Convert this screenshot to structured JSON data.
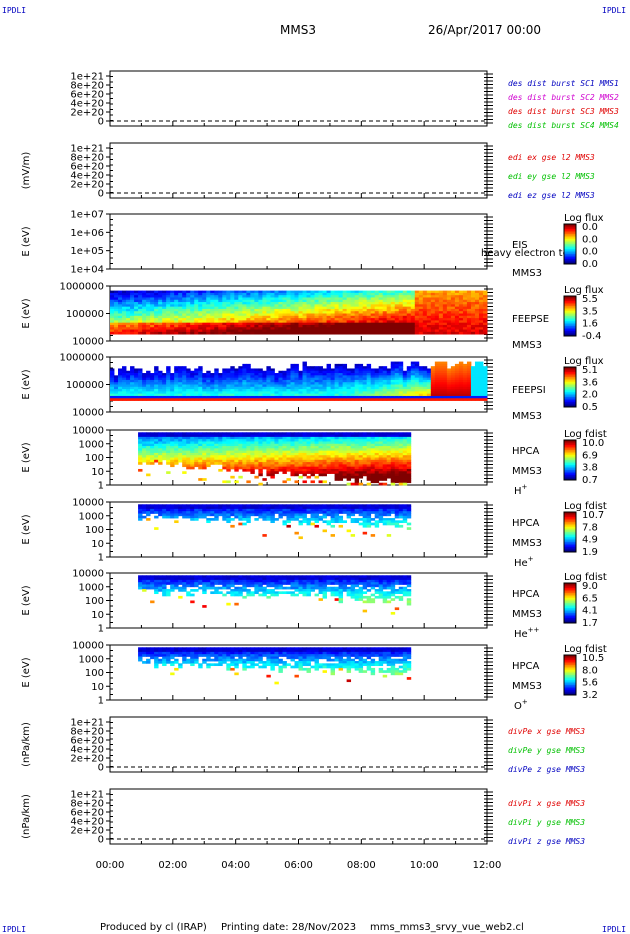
{
  "corner_marks": {
    "top_left": "IPDLI",
    "top_right": "IPDLI",
    "bottom_left": "IPDLI",
    "bottom_right": "IPDLI"
  },
  "header": {
    "spacecraft": "MMS3",
    "date": "26/Apr/2017 00:00"
  },
  "footer": {
    "produced": "Produced by cl (IRAP)",
    "printing": "Printing date: 28/Nov/2023",
    "file": "mms_mms3_srvy_vue_web2.cl"
  },
  "colors": {
    "red": "#e00000",
    "magenta": "#d000d0",
    "green": "#00c000",
    "blue": "#0000c0"
  },
  "chart_data": {
    "type": "heatmap",
    "x_ticks": [
      "00:00",
      "02:00",
      "04:00",
      "06:00",
      "08:00",
      "10:00",
      "12:00"
    ],
    "x_range_hours": [
      0,
      12
    ],
    "panels": [
      {
        "id": "des-dist",
        "type": "line",
        "ylabel": "",
        "yticks": [
          "1e+21",
          "8e+20",
          "6e+20",
          "4e+20",
          "2e+20",
          "0"
        ],
        "legend": [
          {
            "text": "des dist burst SC1 MMS1",
            "color": "#0000c0"
          },
          {
            "text": "des dist burst SC2 MMS2",
            "color": "#d000d0"
          },
          {
            "text": "des dist burst SC3 MMS3",
            "color": "#e00000"
          },
          {
            "text": "des dist burst SC4 MMS4",
            "color": "#00c000"
          }
        ]
      },
      {
        "id": "edi",
        "type": "line",
        "ylabel": "(mV/m)",
        "yticks": [
          "1e+21",
          "8e+20",
          "6e+20",
          "4e+20",
          "2e+20",
          "0"
        ],
        "legend": [
          {
            "text": "edi ex gse l2 MMS3",
            "color": "#e00000"
          },
          {
            "text": "edi ey gse l2 MMS3",
            "color": "#00c000"
          },
          {
            "text": "edi ez gse l2 MMS3",
            "color": "#0000c0"
          }
        ]
      },
      {
        "id": "eis",
        "type": "heatmap",
        "ylabel": "E (eV)",
        "yticks": [
          "1e+07",
          "1e+06",
          "1e+05",
          "1e+04"
        ],
        "instrument": "EIS",
        "subtitle": "heavy electron tof",
        "sc": "MMS3",
        "cb_title": "Log flux",
        "cb_ticks": [
          "0.0",
          "0.0",
          "0.0",
          "0.0"
        ]
      },
      {
        "id": "feeps-e",
        "type": "heatmap",
        "ylabel": "E (eV)",
        "yticks": [
          "1000000",
          "100000",
          "10000"
        ],
        "instrument": "FEEPSE",
        "sc": "MMS3",
        "cb_title": "Log flux",
        "cb_ticks": [
          "5.5",
          "3.5",
          "1.6",
          "-0.4"
        ]
      },
      {
        "id": "feeps-i",
        "type": "heatmap",
        "ylabel": "E (eV)",
        "yticks": [
          "1000000",
          "100000",
          "10000"
        ],
        "instrument": "FEEPSI",
        "sc": "MMS3",
        "cb_title": "Log flux",
        "cb_ticks": [
          "5.1",
          "3.6",
          "2.0",
          "0.5"
        ]
      },
      {
        "id": "hpca-h",
        "type": "heatmap",
        "ylabel": "E (eV)",
        "yticks": [
          "10000",
          "1000",
          "100",
          "10",
          "1"
        ],
        "instrument": "HPCA",
        "sc": "MMS3",
        "species": "H",
        "species_sup": "+",
        "cb_title": "Log fdist",
        "cb_ticks": [
          "10.0",
          "6.9",
          "3.8",
          "0.7"
        ]
      },
      {
        "id": "hpca-he",
        "type": "heatmap",
        "ylabel": "E (eV)",
        "yticks": [
          "10000",
          "1000",
          "100",
          "10",
          "1"
        ],
        "instrument": "HPCA",
        "sc": "MMS3",
        "species": "He",
        "species_sup": "+",
        "cb_title": "Log fdist",
        "cb_ticks": [
          "10.7",
          "7.8",
          "4.9",
          "1.9"
        ]
      },
      {
        "id": "hpca-he2",
        "type": "heatmap",
        "ylabel": "E (eV)",
        "yticks": [
          "10000",
          "1000",
          "100",
          "10",
          "1"
        ],
        "instrument": "HPCA",
        "sc": "MMS3",
        "species": "He",
        "species_sup": "++",
        "cb_title": "Log fdist",
        "cb_ticks": [
          "9.0",
          "6.5",
          "4.1",
          "1.7"
        ]
      },
      {
        "id": "hpca-o",
        "type": "heatmap",
        "ylabel": "E (eV)",
        "yticks": [
          "10000",
          "1000",
          "100",
          "10",
          "1"
        ],
        "instrument": "HPCA",
        "sc": "MMS3",
        "species": "O",
        "species_sup": "+",
        "cb_title": "Log fdist",
        "cb_ticks": [
          "10.5",
          "8.0",
          "5.6",
          "3.2"
        ]
      },
      {
        "id": "divpe",
        "type": "line",
        "ylabel": "(nPa/km)",
        "yticks": [
          "1e+21",
          "8e+20",
          "6e+20",
          "4e+20",
          "2e+20",
          "0"
        ],
        "legend": [
          {
            "text": "divPe x gse MMS3",
            "color": "#e00000"
          },
          {
            "text": "divPe y gse MMS3",
            "color": "#00c000"
          },
          {
            "text": "divPe z gse MMS3",
            "color": "#0000c0"
          }
        ]
      },
      {
        "id": "divpi",
        "type": "line",
        "ylabel": "(nPa/km)",
        "yticks": [
          "1e+21",
          "8e+20",
          "6e+20",
          "4e+20",
          "2e+20",
          "0"
        ],
        "legend": [
          {
            "text": "divPi x gse MMS3",
            "color": "#e00000"
          },
          {
            "text": "divPi y gse MMS3",
            "color": "#00c000"
          },
          {
            "text": "divPi z gse MMS3",
            "color": "#0000c0"
          }
        ]
      }
    ]
  }
}
